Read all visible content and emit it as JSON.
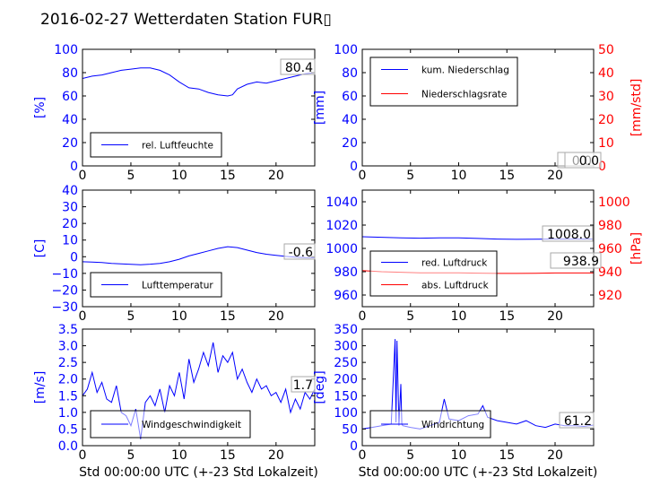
{
  "title": "2016-02-27 Wetterdaten Station FUR▯",
  "colors": {
    "primary": "#0000ff",
    "secondary": "#ff0000",
    "frame": "#000000"
  },
  "chart_data": [
    {
      "id": "humidity",
      "type": "line",
      "xlim": [
        0,
        24
      ],
      "xticks": [
        "0",
        "5",
        "10",
        "15",
        "20"
      ],
      "xtick_values": [
        0,
        5,
        10,
        15,
        20
      ],
      "ylim": [
        0,
        100
      ],
      "yticks": [
        "0",
        "20",
        "40",
        "60",
        "80",
        "100"
      ],
      "ytick_values": [
        0,
        20,
        40,
        60,
        80,
        100
      ],
      "ylabel": "[%]",
      "xlabel": "",
      "legend": "bottom-left",
      "series": [
        {
          "name": "rel. Luftfeuchte",
          "axis": "left",
          "color": "#0000ff",
          "x": [
            0,
            1,
            2,
            3,
            4,
            5,
            6,
            7,
            8,
            9,
            10,
            11,
            12,
            13,
            14,
            15,
            15.5,
            16,
            17,
            18,
            19,
            20,
            21,
            22,
            23,
            24
          ],
          "y": [
            75,
            77,
            78,
            80,
            82,
            83,
            84,
            84,
            82,
            78,
            72,
            67,
            66,
            63,
            61,
            60,
            61,
            66,
            70,
            72,
            71,
            73,
            75,
            77,
            79,
            80
          ]
        }
      ],
      "annotations": [
        "80.4"
      ]
    },
    {
      "id": "precipitation",
      "type": "line",
      "xlim": [
        0,
        24
      ],
      "xticks": [
        "0",
        "5",
        "10",
        "15",
        "20"
      ],
      "xtick_values": [
        0,
        5,
        10,
        15,
        20
      ],
      "ylim": [
        0,
        100
      ],
      "yticks": [
        "0",
        "20",
        "40",
        "60",
        "80",
        "100"
      ],
      "ytick_values": [
        0,
        20,
        40,
        60,
        80,
        100
      ],
      "ylabel": "[mm]",
      "y2lim": [
        0,
        50
      ],
      "y2ticks": [
        "0",
        "10",
        "20",
        "30",
        "40",
        "50"
      ],
      "y2tick_values": [
        0,
        10,
        20,
        30,
        40,
        50
      ],
      "y2label": "[mm/std]",
      "legend": "top-left",
      "series": [
        {
          "name": "kum. Niederschlag",
          "axis": "left",
          "color": "#0000ff",
          "x": [
            0,
            24
          ],
          "y": [
            0,
            0
          ]
        },
        {
          "name": "Niederschlagsrate",
          "axis": "right",
          "color": "#ff0000",
          "x": [
            0,
            24
          ],
          "y": [
            0,
            0
          ]
        }
      ],
      "annotations": [
        "0.0",
        "0.0"
      ]
    },
    {
      "id": "temperature",
      "type": "line",
      "xlim": [
        0,
        24
      ],
      "xticks": [
        "0",
        "5",
        "10",
        "15",
        "20"
      ],
      "xtick_values": [
        0,
        5,
        10,
        15,
        20
      ],
      "ylim": [
        -30,
        40
      ],
      "yticks": [
        "−30",
        "−20",
        "−10",
        "0",
        "10",
        "20",
        "30",
        "40"
      ],
      "ytick_values": [
        -30,
        -20,
        -10,
        0,
        10,
        20,
        30,
        40
      ],
      "ylabel": "[C]",
      "legend": "bottom-left",
      "series": [
        {
          "name": "Lufttemperatur",
          "axis": "left",
          "color": "#0000ff",
          "x": [
            0,
            1,
            2,
            3,
            4,
            5,
            6,
            7,
            8,
            9,
            10,
            11,
            12,
            13,
            14,
            15,
            16,
            17,
            18,
            19,
            20,
            21,
            22,
            23,
            24
          ],
          "y": [
            -3,
            -3.2,
            -3.5,
            -4,
            -4.3,
            -4.6,
            -4.8,
            -4.5,
            -4,
            -3,
            -1.5,
            0.5,
            2,
            3.5,
            5,
            6,
            5.5,
            4,
            2.5,
            1.5,
            0.8,
            0.2,
            -0.2,
            -0.5,
            -0.6
          ]
        }
      ],
      "annotations": [
        "-0.6"
      ]
    },
    {
      "id": "pressure",
      "type": "line",
      "xlim": [
        0,
        24
      ],
      "xticks": [
        "0",
        "5",
        "10",
        "15",
        "20"
      ],
      "xtick_values": [
        0,
        5,
        10,
        15,
        20
      ],
      "ylim": [
        950,
        1050
      ],
      "yticks": [
        "960",
        "980",
        "1000",
        "1020",
        "1040"
      ],
      "ytick_values": [
        960,
        980,
        1000,
        1020,
        1040
      ],
      "y2lim": [
        910,
        1010
      ],
      "y2ticks": [
        "920",
        "940",
        "960",
        "980",
        "1000"
      ],
      "y2tick_values": [
        920,
        940,
        960,
        980,
        1000
      ],
      "y2label": "[hPa]",
      "legend": "bottom-left",
      "series": [
        {
          "name": "red. Luftdruck",
          "axis": "left",
          "color": "#0000ff",
          "x": [
            0,
            2,
            4,
            6,
            8,
            10,
            12,
            14,
            16,
            18,
            20,
            22,
            24
          ],
          "y": [
            1010,
            1009.5,
            1009,
            1008.8,
            1009,
            1009,
            1008.5,
            1008,
            1007.8,
            1007.9,
            1008,
            1008,
            1008
          ]
        },
        {
          "name": "abs. Luftdruck",
          "axis": "right",
          "color": "#ff0000",
          "x": [
            0,
            2,
            4,
            6,
            8,
            10,
            12,
            14,
            16,
            18,
            20,
            22,
            24
          ],
          "y": [
            941,
            940,
            939.5,
            939,
            939,
            939,
            938.8,
            938.5,
            938.5,
            938.7,
            938.9,
            938.9,
            938.9
          ]
        }
      ],
      "annotations": [
        "1008.0",
        "938.9"
      ]
    },
    {
      "id": "windspeed",
      "type": "line",
      "xlim": [
        0,
        24
      ],
      "xticks": [
        "0",
        "5",
        "10",
        "15",
        "20"
      ],
      "xtick_values": [
        0,
        5,
        10,
        15,
        20
      ],
      "ylim": [
        0,
        3.5
      ],
      "yticks": [
        "0.0",
        "0.5",
        "1.0",
        "1.5",
        "2.0",
        "2.5",
        "3.0",
        "3.5"
      ],
      "ytick_values": [
        0,
        0.5,
        1,
        1.5,
        2,
        2.5,
        3,
        3.5
      ],
      "ylabel": "[m/s]",
      "xlabel": "Std 00:00:00 UTC (+-23 Std Lokalzeit)",
      "legend": "bottom-left",
      "series": [
        {
          "name": "Windgeschwindigkeit",
          "axis": "left",
          "color": "#0000ff",
          "x": [
            0,
            0.5,
            1,
            1.5,
            2,
            2.5,
            3,
            3.5,
            4,
            4.5,
            5,
            5.5,
            6,
            6.5,
            7,
            7.5,
            8,
            8.5,
            9,
            9.5,
            10,
            10.5,
            11,
            11.5,
            12,
            12.5,
            13,
            13.5,
            14,
            14.5,
            15,
            15.5,
            16,
            16.5,
            17,
            17.5,
            18,
            18.5,
            19,
            19.5,
            20,
            20.5,
            21,
            21.5,
            22,
            22.5,
            23,
            23.5,
            24
          ],
          "y": [
            1.5,
            1.7,
            2.2,
            1.6,
            1.9,
            1.4,
            1.3,
            1.8,
            1.0,
            0.9,
            0.6,
            1.1,
            0.2,
            1.3,
            1.5,
            1.2,
            1.7,
            1.0,
            1.8,
            1.5,
            2.2,
            1.4,
            2.6,
            1.9,
            2.3,
            2.8,
            2.4,
            3.1,
            2.2,
            2.7,
            2.5,
            2.8,
            2.0,
            2.3,
            1.9,
            1.6,
            2.0,
            1.7,
            1.8,
            1.5,
            1.6,
            1.3,
            1.7,
            1.0,
            1.4,
            1.1,
            1.6,
            1.4,
            1.7
          ]
        }
      ],
      "annotations": [
        "1.7"
      ]
    },
    {
      "id": "winddirection",
      "type": "line",
      "xlim": [
        0,
        24
      ],
      "xticks": [
        "0",
        "5",
        "10",
        "15",
        "20"
      ],
      "xtick_values": [
        0,
        5,
        10,
        15,
        20
      ],
      "ylim": [
        0,
        350
      ],
      "yticks": [
        "0",
        "50",
        "100",
        "150",
        "200",
        "250",
        "300",
        "350"
      ],
      "ytick_values": [
        0,
        50,
        100,
        150,
        200,
        250,
        300,
        350
      ],
      "ylabel": "[deg]",
      "xlabel": "Std 00:00:00 UTC (+-23 Std Lokalzeit)",
      "legend": "bottom-left",
      "series": [
        {
          "name": "Windrichtung",
          "axis": "left",
          "color": "#0000ff",
          "x": [
            0,
            1,
            2,
            3,
            3.4,
            3.5,
            3.6,
            3.8,
            4.0,
            4.1,
            4.2,
            5,
            6,
            7,
            8,
            8.5,
            9,
            10,
            11,
            12,
            12.5,
            13,
            14,
            15,
            16,
            17,
            18,
            19,
            20,
            21,
            22,
            23,
            24
          ],
          "y": [
            50,
            55,
            60,
            65,
            320,
            70,
            315,
            60,
            185,
            65,
            60,
            55,
            50,
            60,
            70,
            140,
            80,
            75,
            90,
            95,
            120,
            85,
            75,
            70,
            65,
            75,
            60,
            55,
            65,
            60,
            60,
            58,
            62
          ]
        }
      ],
      "annotations": [
        "61.2"
      ]
    }
  ]
}
